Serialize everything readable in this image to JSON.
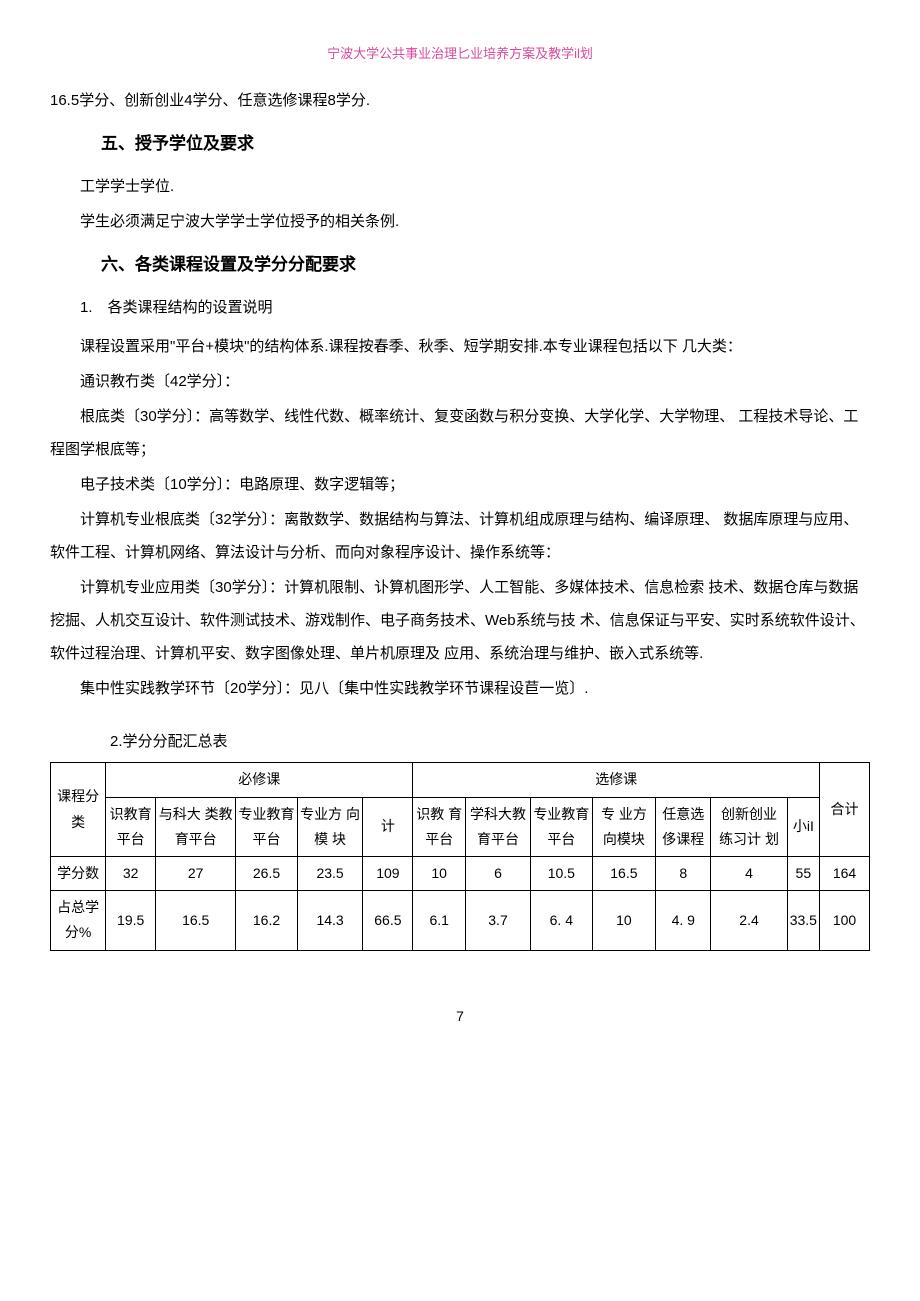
{
  "header": {
    "title": "宁波大学公共事业治理匕业培养方案及教学il划"
  },
  "paragraphs": {
    "p1": "16.5学分、创新创业4学分、任意选修课程8学分.",
    "section5_title": "五、授予学位及要求",
    "p2": "工学学士学位.",
    "p3": "学生必须满足宁波大学学士学位授予的相关条例.",
    "section6_title": "六、各类课程设置及学分分配要求",
    "p4": "1.　各类课程结构的设置说明",
    "p5": "课程设置采用\"平台+模块\"的结构体系.课程按春季、秋季、短学期安排.本专业课程包括以下 几大类：",
    "p6": "通识教冇类〔42学分〕：",
    "p7": "根底类〔30学分〕：高等数学、线性代数、概率统计、复变函数与积分变换、大学化学、大学物理、 工程技术导论、工程图学根底等；",
    "p8": "电子技术类〔10学分〕：电路原理、数字逻辑等；",
    "p9": "计算机专业根底类〔32学分〕：离散数学、数据结构与算法、计算机组成原理与结构、编译原理、 数据库原理与应用、软件工程、计算机网络、算法设计与分析、而向对象程序设计、操作系统等：",
    "p10": "计算机专业应用类〔30学分〕：计算机限制、讣算机图形学、人工智能、多媒体技术、信息检索 技术、数据仓库与数据挖掘、人机交互设计、软件测试技术、游戏制作、电子商务技术、Web系统与技 术、信息保证与平安、实时系统软件设计、软件过程治理、计算机平安、数字图像处理、单片机原理及 应用、系统治理与维护、嵌入式系统等.",
    "p11": "集中性实践教学环节〔20学分〕：见八〔集中性实践教学环节课程设苣一览〕.",
    "table_title": "2.学分分配汇总表"
  },
  "table": {
    "headers": {
      "required": "必修课",
      "elective": "选修课",
      "category": "课程分类",
      "col1": "识教育平台",
      "col2": "与科大 类教 育平台",
      "col3": "专业教育平台",
      "col4": "专业方 向模 块",
      "col5": "计",
      "col6": "识教 育平台",
      "col7": "学科大教育平台",
      "col8": "专业教育平台",
      "col9": "专 业方向模块",
      "col10": "任意选侈课程",
      "col11": "创新创业 练习计 划",
      "col12": "小iI",
      "col13": "合计"
    },
    "rows": [
      {
        "label": "学分数",
        "values": [
          "32",
          "27",
          "26.5",
          "23.5",
          "109",
          "10",
          "6",
          "10.5",
          "16.5",
          "8",
          "4",
          "55",
          "164"
        ]
      },
      {
        "label": "占总学 分%",
        "values": [
          "19.5",
          "16.5",
          "16.2",
          "14.3",
          "66.5",
          "6.1",
          "3.7",
          "6. 4",
          "10",
          "4. 9",
          "2.4",
          "33.5",
          "100"
        ]
      }
    ]
  },
  "page_number": "7",
  "styling": {
    "header_color": "#d84a9e",
    "text_color": "#000000",
    "border_color": "#000000",
    "background_color": "#ffffff",
    "body_fontsize": 15,
    "header_fontsize": 13,
    "section_title_fontsize": 17,
    "table_fontsize": 14
  }
}
